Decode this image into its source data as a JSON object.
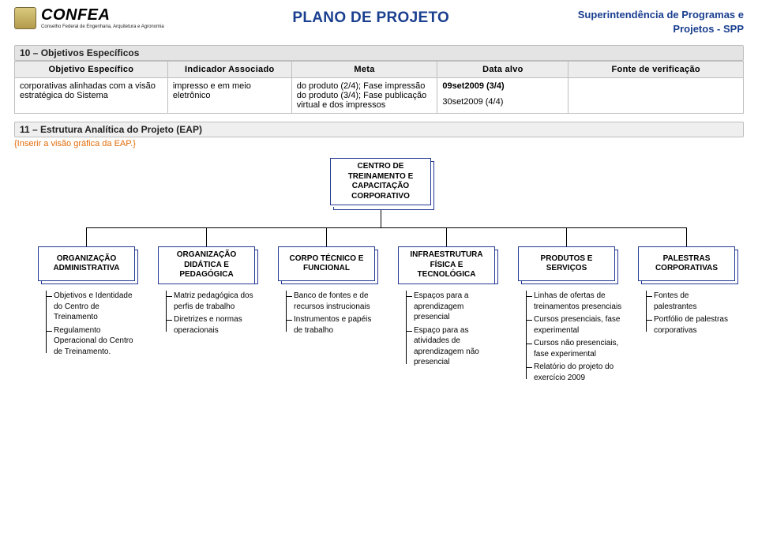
{
  "header": {
    "logo_text": "CONFEA",
    "logo_sub": "Conselho Federal de Engenharia,\nArquitetura e Agronomia",
    "title": "PLANO DE PROJETO",
    "right_line1": "Superintendência de Programas e",
    "right_line2": "Projetos - SPP"
  },
  "section10": {
    "label": "10 – Objetivos Específicos",
    "table": {
      "headers": [
        "Objetivo Específico",
        "Indicador Associado",
        "Meta",
        "Data alvo",
        "Fonte de verificação"
      ],
      "row": {
        "obj": "corporativas alinhadas com a visão estratégica do Sistema",
        "ind": "impresso e em meio eletrônico",
        "meta": "do produto (2/4); Fase impressão do produto (3/4); Fase publicação virtual e dos impressos",
        "data1": "09set2009 (3/4)",
        "data2": "30set2009 (4/4)",
        "fonte": ""
      }
    }
  },
  "section11": {
    "label": "11 – Estrutura Analítica do Projeto (EAP)",
    "note": "{Inserir a visão gráfica da EAP.}"
  },
  "chart": {
    "colors": {
      "border": "#243994",
      "bg": "#ffffff",
      "line": "#000000"
    },
    "top": "CENTRO DE TREINAMENTO E CAPACITAÇÃO CORPORATIVO",
    "branches": [
      {
        "title": "ORGANIZAÇÃO ADMINISTRATIVA",
        "items": [
          "Objetivos e Identidade do Centro de Treinamento",
          "Regulamento Operacional do Centro de Treinamento."
        ]
      },
      {
        "title": "ORGANIZAÇÃO DIDÁTICA E PEDAGÓGICA",
        "items": [
          "Matriz pedagógica dos perfis de trabalho",
          "Diretrizes e normas operacionais"
        ]
      },
      {
        "title": "CORPO TÉCNICO E FUNCIONAL",
        "items": [
          "Banco de fontes e de recursos instrucionais",
          "Instrumentos e papéis de trabalho"
        ]
      },
      {
        "title": "INFRAESTRUTURA FÍSICA E TECNOLÓGICA",
        "items": [
          "Espaços para a aprendizagem presencial",
          "Espaço para as atividades de aprendizagem não presencial"
        ]
      },
      {
        "title": "PRODUTOS E SERVIÇOS",
        "items": [
          "Linhas de ofertas de treinamentos presenciais",
          "Cursos presenciais, fase experimental",
          "Cursos não presenciais, fase experimental",
          "Relatório do projeto do exercício 2009"
        ]
      },
      {
        "title": "PALESTRAS CORPORATIVAS",
        "items": [
          "Fontes de palestrantes",
          "Portfólio de palestras corporativas"
        ]
      }
    ]
  }
}
